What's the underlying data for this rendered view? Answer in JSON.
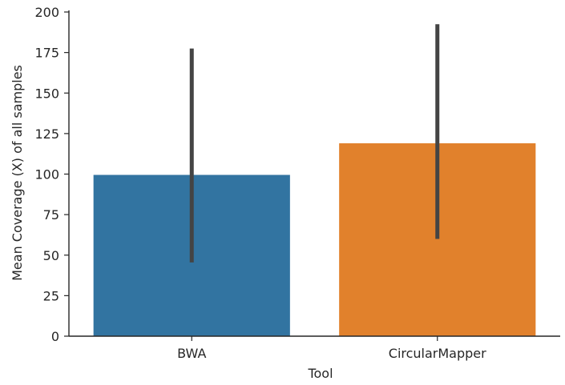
{
  "chart_data": {
    "type": "bar",
    "title": "",
    "xlabel": "Tool",
    "ylabel": "Mean Coverage (X) of all samples",
    "categories": [
      "BWA",
      "CircularMapper"
    ],
    "values": [
      99.5,
      119
    ],
    "error_bars": [
      {
        "low": 45.5,
        "high": 177.5
      },
      {
        "low": 60,
        "high": 192.5
      }
    ],
    "colors": [
      "#3274a1",
      "#e1812c"
    ],
    "errorbar_color": "#444444",
    "ylim": [
      0,
      200
    ],
    "yticks": [
      0,
      25,
      50,
      75,
      100,
      125,
      150,
      175,
      200
    ],
    "grid": false,
    "legend": "none"
  }
}
